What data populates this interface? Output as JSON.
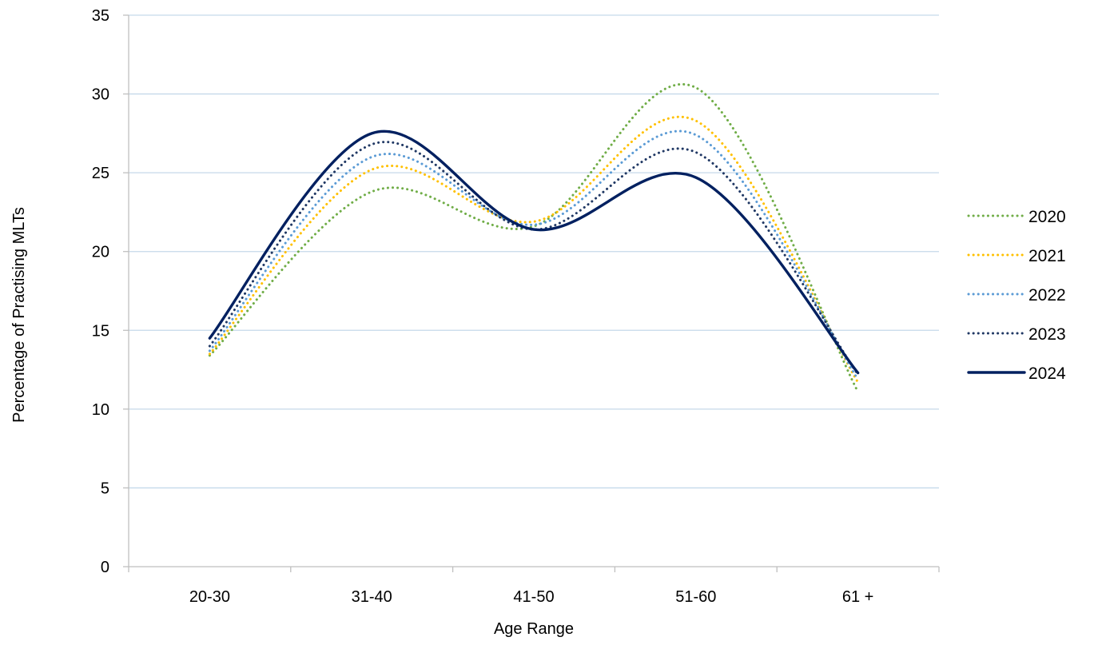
{
  "chart_data": {
    "type": "line",
    "title": "",
    "xlabel": "Age Range",
    "ylabel": "Percentage of Practising MLTs",
    "categories": [
      "20-30",
      "31-40",
      "41-50",
      "51-60",
      "61 +"
    ],
    "ylim": [
      0,
      35
    ],
    "yticks": [
      0,
      5,
      10,
      15,
      20,
      25,
      30,
      35
    ],
    "grid": "horizontal",
    "legend_position": "right",
    "smooth": true,
    "series": [
      {
        "name": "2020",
        "values": [
          13.4,
          23.8,
          21.6,
          30.4,
          11.1
        ],
        "color": "#70ad47",
        "style": "dotted"
      },
      {
        "name": "2021",
        "values": [
          13.5,
          25.2,
          21.9,
          28.3,
          11.7
        ],
        "color": "#ffc000",
        "style": "dotted"
      },
      {
        "name": "2022",
        "values": [
          13.7,
          26.0,
          21.7,
          27.4,
          11.9
        ],
        "color": "#5b9bd5",
        "style": "dotted"
      },
      {
        "name": "2023",
        "values": [
          14.0,
          26.8,
          21.4,
          26.3,
          12.2
        ],
        "color": "#203864",
        "style": "dotted"
      },
      {
        "name": "2024",
        "values": [
          14.5,
          27.5,
          21.4,
          24.7,
          12.3
        ],
        "color": "#002060",
        "style": "solid"
      }
    ]
  }
}
